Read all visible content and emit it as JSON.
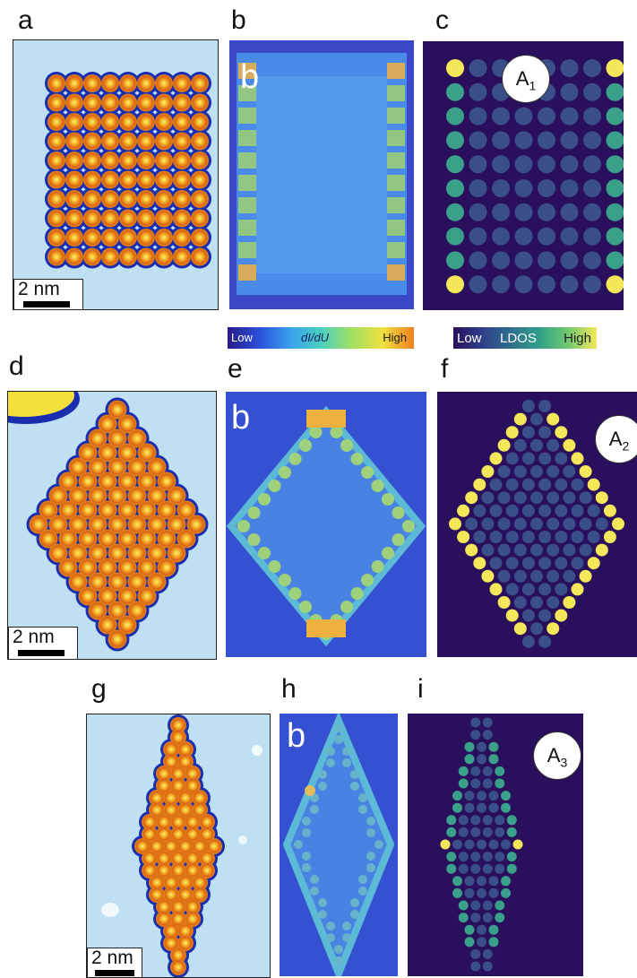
{
  "panels": {
    "a": {
      "label": "a",
      "scale": "2 nm"
    },
    "b": {
      "label": "b",
      "overlay": "b"
    },
    "c": {
      "label": "c",
      "badge_main": "A",
      "badge_sub": "1"
    },
    "d": {
      "label": "d",
      "scale": "2 nm"
    },
    "e": {
      "label": "e",
      "overlay": "b"
    },
    "f": {
      "label": "f",
      "badge_main": "A",
      "badge_sub": "2"
    },
    "g": {
      "label": "g",
      "scale": "2 nm"
    },
    "h": {
      "label": "h",
      "overlay": "b"
    },
    "i": {
      "label": "i",
      "badge_main": "A",
      "badge_sub": "3"
    }
  },
  "colorbars": {
    "didu": {
      "low": "Low",
      "mid": "dI/dU",
      "high": "High"
    },
    "ldos": {
      "low": "Low",
      "mid": "LDOS",
      "high": "High"
    }
  },
  "colors": {
    "stm_bg": "#bfe0f2",
    "stm_atom": "#f0a020",
    "stm_edge": "#1a2fb0",
    "map_bg": "#3c63d8",
    "ldos_bg": "#2a0f5c",
    "ldos_low": "#3a4f8a",
    "ldos_mid": "#3aa08a",
    "ldos_high": "#f4e85a"
  }
}
